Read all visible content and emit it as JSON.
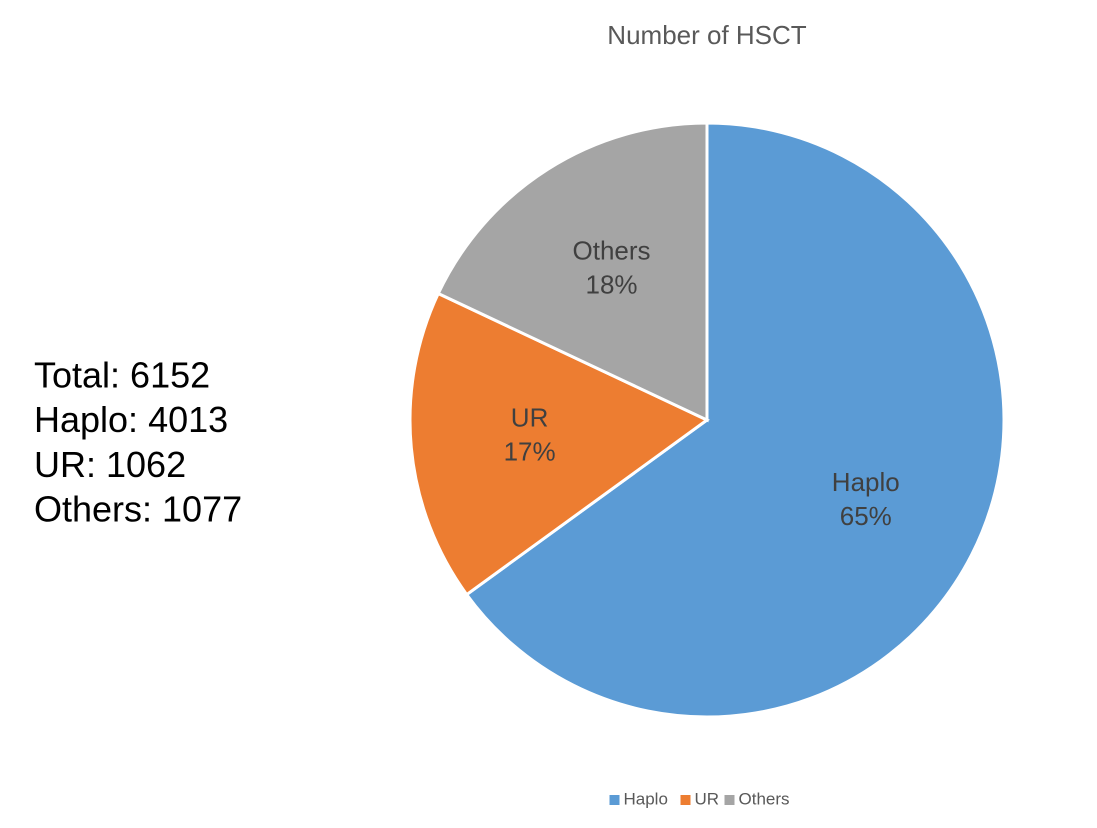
{
  "chart_data": {
    "type": "pie",
    "title": "Number of HSCT",
    "categories": [
      "Haplo",
      "UR",
      "Others"
    ],
    "values": [
      65,
      17,
      18
    ],
    "value_labels": [
      "65%",
      "17%",
      "18%"
    ],
    "colors": [
      "#5b9bd5",
      "#ed7d31",
      "#a5a5a5"
    ],
    "legend": "bottom",
    "annotations": [
      "Total: 6152",
      "Haplo: 4013",
      "UR: 1062",
      "Others: 1077"
    ]
  }
}
